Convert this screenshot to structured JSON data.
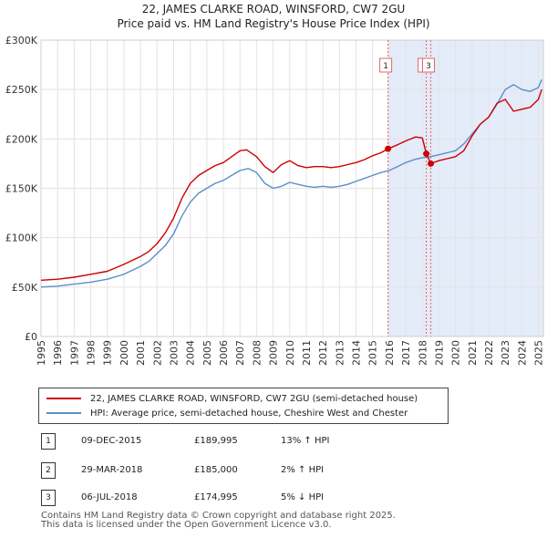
{
  "chart_data": {
    "type": "line",
    "title": "22, JAMES CLARKE ROAD, WINSFORD, CW7 2GU",
    "subtitle": "Price paid vs. HM Land Registry's House Price Index (HPI)",
    "xlim": [
      1995,
      2025.3
    ],
    "ylim": [
      0,
      300000
    ],
    "y_ticks": [
      0,
      50000,
      100000,
      150000,
      200000,
      250000,
      300000
    ],
    "y_tick_labels": [
      "£0",
      "£50K",
      "£100K",
      "£150K",
      "£200K",
      "£250K",
      "£300K"
    ],
    "x_ticks": [
      1995,
      1996,
      1997,
      1998,
      1999,
      2000,
      2001,
      2002,
      2003,
      2004,
      2005,
      2006,
      2007,
      2008,
      2009,
      2010,
      2011,
      2012,
      2013,
      2014,
      2015,
      2016,
      2017,
      2018,
      2019,
      2020,
      2021,
      2022,
      2023,
      2024,
      2025
    ],
    "grid": true,
    "shade_region": [
      2015.93,
      2025.3
    ],
    "series": [
      {
        "name": "22, JAMES CLARKE ROAD, WINSFORD, CW7 2GU (semi-detached house)",
        "color": "#cc0000",
        "x": [
          1995.0,
          1996.0,
          1997.0,
          1998.0,
          1999.0,
          2000.0,
          2001.0,
          2001.5,
          2002.0,
          2002.5,
          2003.0,
          2003.5,
          2004.0,
          2004.5,
          2005.0,
          2005.5,
          2006.0,
          2006.5,
          2007.0,
          2007.4,
          2008.0,
          2008.5,
          2009.0,
          2009.5,
          2010.0,
          2010.5,
          2011.0,
          2011.5,
          2012.0,
          2012.5,
          2013.0,
          2013.5,
          2014.0,
          2014.5,
          2015.0,
          2015.5,
          2015.93,
          2016.5,
          2017.0,
          2017.6,
          2018.0,
          2018.24,
          2018.51,
          2019.0,
          2019.5,
          2020.0,
          2020.5,
          2021.0,
          2021.5,
          2022.0,
          2022.5,
          2023.0,
          2023.5,
          2024.0,
          2024.5,
          2025.0,
          2025.2
        ],
        "values": [
          57000,
          58000,
          60000,
          63000,
          66000,
          73000,
          81000,
          86000,
          94000,
          105000,
          120000,
          140000,
          155000,
          163000,
          168000,
          173000,
          176000,
          182000,
          188000,
          189000,
          182000,
          172000,
          166000,
          174000,
          178000,
          173000,
          171000,
          172000,
          172000,
          171000,
          172000,
          174000,
          176000,
          179000,
          183000,
          186000,
          189995,
          194000,
          198000,
          202000,
          201000,
          185000,
          174995,
          178000,
          180000,
          182000,
          188000,
          203000,
          215000,
          222000,
          236000,
          240000,
          228000,
          230000,
          232000,
          240000,
          250000
        ]
      },
      {
        "name": "HPI: Average price, semi-detached house, Cheshire West and Chester",
        "color": "#5b8ec8",
        "x": [
          1995.0,
          1996.0,
          1997.0,
          1998.0,
          1999.0,
          2000.0,
          2001.0,
          2001.5,
          2002.0,
          2002.5,
          2003.0,
          2003.5,
          2004.0,
          2004.5,
          2005.0,
          2005.5,
          2006.0,
          2006.5,
          2007.0,
          2007.5,
          2008.0,
          2008.5,
          2009.0,
          2009.5,
          2010.0,
          2010.5,
          2011.0,
          2011.5,
          2012.0,
          2012.5,
          2013.0,
          2013.5,
          2014.0,
          2014.5,
          2015.0,
          2015.5,
          2016.0,
          2016.5,
          2017.0,
          2017.5,
          2018.0,
          2018.5,
          2019.0,
          2019.5,
          2020.0,
          2020.5,
          2021.0,
          2021.5,
          2022.0,
          2022.5,
          2023.0,
          2023.5,
          2024.0,
          2024.5,
          2025.0,
          2025.2
        ],
        "values": [
          50000,
          51000,
          53000,
          55000,
          58000,
          63000,
          71000,
          76000,
          84000,
          92000,
          104000,
          122000,
          136000,
          145000,
          150000,
          155000,
          158000,
          163000,
          168000,
          170000,
          166000,
          155000,
          150000,
          152000,
          156000,
          154000,
          152000,
          151000,
          152000,
          151000,
          152000,
          154000,
          157000,
          160000,
          163000,
          166000,
          168000,
          172000,
          176000,
          179000,
          181000,
          182000,
          184000,
          186000,
          188000,
          195000,
          205000,
          215000,
          222000,
          235000,
          250000,
          255000,
          250000,
          248000,
          252000,
          260000
        ]
      }
    ],
    "sales_markers": [
      {
        "label": "1",
        "x": 2015.93,
        "y": 189995
      },
      {
        "label": "2",
        "x": 2018.24,
        "y": 185000
      },
      {
        "label": "3",
        "x": 2018.51,
        "y": 174995
      }
    ],
    "legend": [
      {
        "label": "22, JAMES CLARKE ROAD, WINSFORD, CW7 2GU (semi-detached house)",
        "color": "#cc0000"
      },
      {
        "label": "HPI: Average price, semi-detached house, Cheshire West and Chester",
        "color": "#5b8ec8"
      }
    ]
  },
  "sales": [
    {
      "num": "1",
      "date": "09-DEC-2015",
      "price": "£189,995",
      "hpi": "13% ↑ HPI"
    },
    {
      "num": "2",
      "date": "29-MAR-2018",
      "price": "£185,000",
      "hpi": "2% ↑ HPI"
    },
    {
      "num": "3",
      "date": "06-JUL-2018",
      "price": "£174,995",
      "hpi": "5% ↓ HPI"
    }
  ],
  "footer": {
    "line1": "Contains HM Land Registry data © Crown copyright and database right 2025.",
    "line2": "This data is licensed under the Open Government Licence v3.0."
  }
}
